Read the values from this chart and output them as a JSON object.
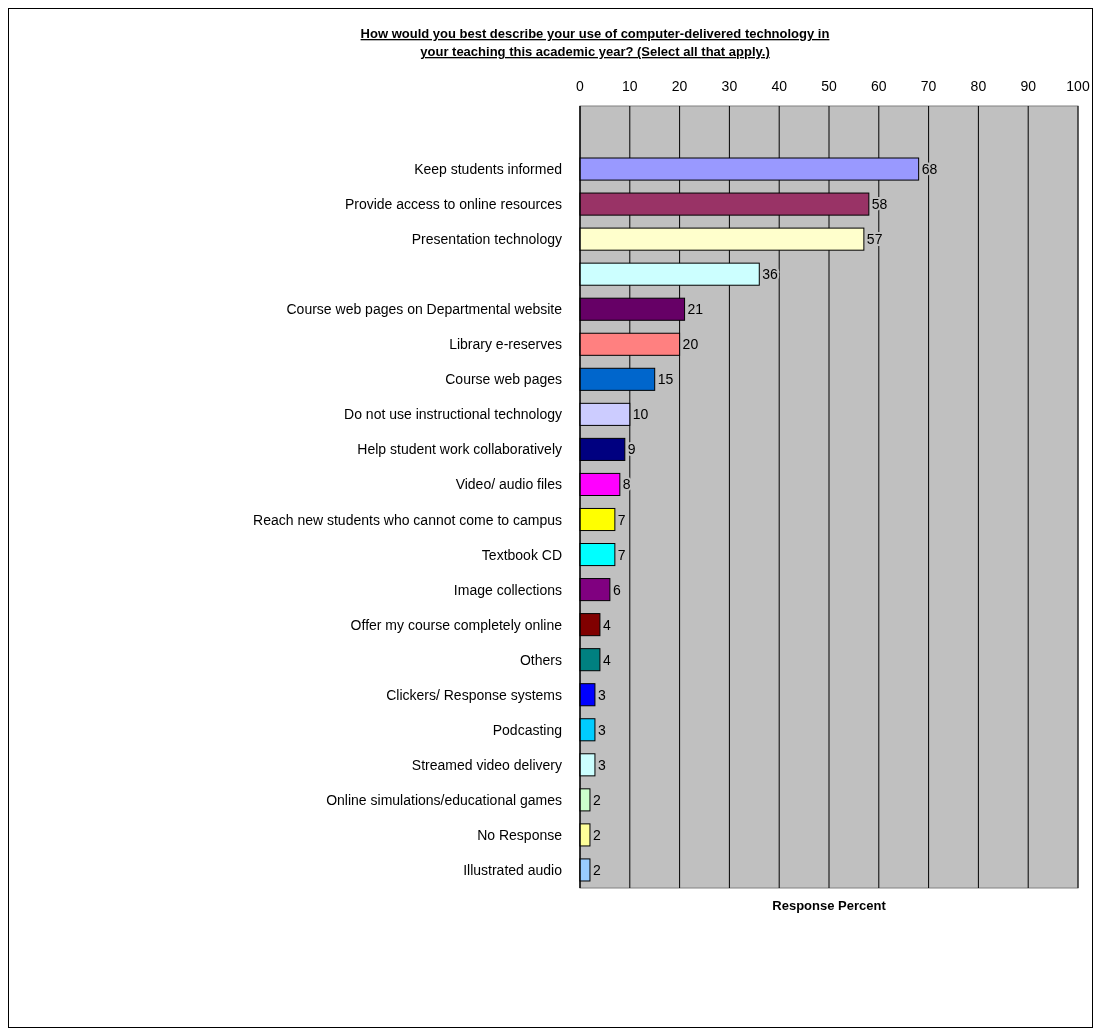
{
  "chart_data": {
    "type": "bar",
    "orientation": "horizontal",
    "title": "How would you best describe your use of computer-delivered technology in your teaching this academic year? (Select all that apply.)",
    "xlabel": "Response Percent",
    "categories": [
      "Keep students informed",
      "Provide access to online resources",
      "Presentation technology",
      null,
      "Course web pages on Departmental website",
      "Library e-reserves",
      "Course web pages",
      "Do not use instructional technology",
      "Help student work collaboratively",
      "Video/ audio files",
      "Reach new students who cannot come to campus",
      "Textbook CD",
      "Image collections",
      "Offer my course completely online",
      "Others",
      "Clickers/ Response systems",
      "Podcasting",
      "Streamed video delivery",
      "Online simulations/educational games",
      "No Response",
      "Illustrated audio"
    ],
    "values": [
      68,
      58,
      57,
      36,
      21,
      20,
      15,
      10,
      9,
      8,
      7,
      7,
      6,
      4,
      4,
      3,
      3,
      3,
      2,
      2,
      2
    ],
    "colors": [
      "#9999ff",
      "#993366",
      "#ffffcc",
      "#ccffff",
      "#660066",
      "#ff8080",
      "#0066cc",
      "#ccccff",
      "#000080",
      "#ff00ff",
      "#ffff00",
      "#00ffff",
      "#800080",
      "#800000",
      "#008080",
      "#0000ff",
      "#00ccff",
      "#ccffff",
      "#ccffcc",
      "#ffff99",
      "#99ccff"
    ],
    "xlim": [
      0,
      100
    ],
    "xticks": [
      0,
      10,
      20,
      30,
      40,
      50,
      60,
      70,
      80,
      90,
      100
    ],
    "grid": "x",
    "data_labels": true
  }
}
